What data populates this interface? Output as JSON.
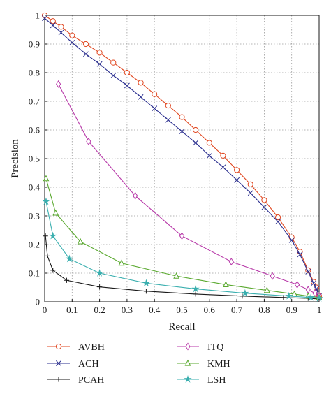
{
  "chart_data": {
    "type": "line",
    "title": "",
    "xlabel": "Recall",
    "ylabel": "Precision",
    "xlim": [
      0,
      1
    ],
    "ylim": [
      0,
      1
    ],
    "grid": true,
    "grid_style": "dotted",
    "legend_placement": "below",
    "xticks": [
      "0",
      "0.1",
      "0.2",
      "0.3",
      "0.4",
      "0.5",
      "0.6",
      "0.7",
      "0.8",
      "0.9",
      "1"
    ],
    "yticks": [
      "0",
      "0.1",
      "0.2",
      "0.3",
      "0.4",
      "0.5",
      "0.6",
      "0.7",
      "0.8",
      "0.9",
      "1"
    ],
    "series": [
      {
        "name": "AVBH",
        "color": "#e0461f",
        "marker": "circle",
        "x": [
          0,
          0.03,
          0.06,
          0.1,
          0.15,
          0.2,
          0.25,
          0.3,
          0.35,
          0.4,
          0.45,
          0.5,
          0.55,
          0.6,
          0.65,
          0.7,
          0.75,
          0.8,
          0.85,
          0.9,
          0.93,
          0.96,
          0.98,
          0.99,
          1.0
        ],
        "y": [
          1.0,
          0.98,
          0.96,
          0.93,
          0.9,
          0.87,
          0.835,
          0.8,
          0.765,
          0.725,
          0.685,
          0.645,
          0.6,
          0.555,
          0.51,
          0.46,
          0.41,
          0.355,
          0.295,
          0.225,
          0.175,
          0.11,
          0.07,
          0.05,
          0.02
        ]
      },
      {
        "name": "ACH",
        "color": "#2b2f8f",
        "marker": "x",
        "x": [
          0,
          0.03,
          0.06,
          0.1,
          0.15,
          0.2,
          0.25,
          0.3,
          0.35,
          0.4,
          0.45,
          0.5,
          0.55,
          0.6,
          0.65,
          0.7,
          0.75,
          0.8,
          0.85,
          0.9,
          0.93,
          0.96,
          0.98,
          0.99,
          1.0
        ],
        "y": [
          0.99,
          0.965,
          0.94,
          0.905,
          0.865,
          0.83,
          0.79,
          0.755,
          0.715,
          0.675,
          0.635,
          0.595,
          0.555,
          0.51,
          0.47,
          0.425,
          0.38,
          0.33,
          0.28,
          0.215,
          0.165,
          0.105,
          0.065,
          0.045,
          0.02
        ]
      },
      {
        "name": "PCAH",
        "color": "#1a1a1a",
        "marker": "plus",
        "x": [
          0.003,
          0.01,
          0.03,
          0.08,
          0.2,
          0.37,
          0.55,
          0.72,
          0.87,
          0.96,
          1.0
        ],
        "y": [
          0.23,
          0.16,
          0.11,
          0.075,
          0.052,
          0.037,
          0.027,
          0.02,
          0.015,
          0.012,
          0.01
        ]
      },
      {
        "name": "ITQ",
        "color": "#b83aa9",
        "marker": "diamond",
        "x": [
          0.05,
          0.16,
          0.33,
          0.5,
          0.68,
          0.83,
          0.92,
          0.96,
          0.985,
          1.0
        ],
        "y": [
          0.76,
          0.56,
          0.37,
          0.23,
          0.14,
          0.09,
          0.06,
          0.042,
          0.03,
          0.02
        ]
      },
      {
        "name": "KMH",
        "color": "#5aa92f",
        "marker": "triangle",
        "x": [
          0.005,
          0.04,
          0.13,
          0.28,
          0.48,
          0.66,
          0.81,
          0.91,
          0.96,
          1.0
        ],
        "y": [
          0.43,
          0.31,
          0.21,
          0.135,
          0.09,
          0.06,
          0.04,
          0.027,
          0.02,
          0.015
        ]
      },
      {
        "name": "LSH",
        "color": "#3aafaf",
        "marker": "star",
        "x": [
          0.005,
          0.03,
          0.09,
          0.2,
          0.37,
          0.55,
          0.73,
          0.89,
          0.97,
          1.0
        ],
        "y": [
          0.35,
          0.23,
          0.15,
          0.1,
          0.065,
          0.045,
          0.03,
          0.02,
          0.015,
          0.012
        ]
      }
    ]
  }
}
